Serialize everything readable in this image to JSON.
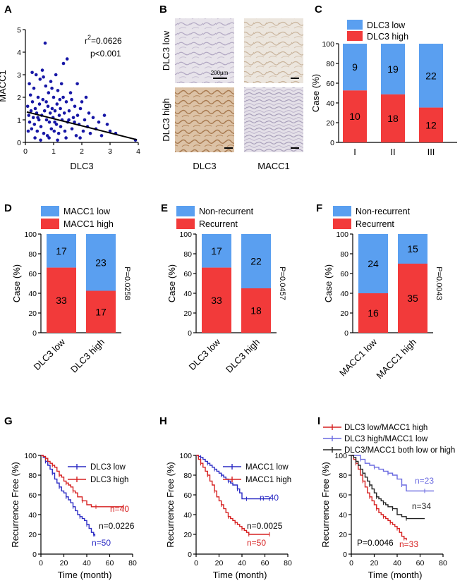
{
  "colors": {
    "blue_bar": "#5a9ff0",
    "red_bar": "#f23a3a",
    "scatter": "#1717a6",
    "km_blue": "#2b2bc4",
    "km_red": "#d62020",
    "km_lightblue": "#6a6ae0",
    "km_black": "#222222"
  },
  "chart_data": [
    {
      "panel": "A",
      "type": "scatter",
      "xlabel": "DLC3",
      "ylabel": "MACC1",
      "xlim": [
        0,
        4
      ],
      "ylim": [
        0,
        5
      ],
      "xticks": [
        "0",
        "1",
        "2",
        "3",
        "4"
      ],
      "yticks": [
        "0",
        "1",
        "2",
        "3",
        "4",
        "5"
      ],
      "annotations": [
        "r²=0.0626",
        "p<0.001"
      ],
      "trend": {
        "x": [
          0.05,
          3.95
        ],
        "y": [
          1.35,
          0.12
        ]
      },
      "points": [
        [
          0.08,
          1.6
        ],
        [
          0.12,
          1.2
        ],
        [
          0.15,
          0.9
        ],
        [
          0.18,
          2.1
        ],
        [
          0.2,
          1.4
        ],
        [
          0.22,
          0.6
        ],
        [
          0.25,
          1.8
        ],
        [
          0.28,
          1.1
        ],
        [
          0.3,
          2.4
        ],
        [
          0.32,
          0.8
        ],
        [
          0.35,
          1.5
        ],
        [
          0.38,
          3.0
        ],
        [
          0.4,
          1.3
        ],
        [
          0.42,
          0.5
        ],
        [
          0.45,
          2.0
        ],
        [
          0.48,
          1.0
        ],
        [
          0.5,
          1.7
        ],
        [
          0.52,
          2.8
        ],
        [
          0.55,
          0.7
        ],
        [
          0.58,
          1.2
        ],
        [
          0.6,
          3.2
        ],
        [
          0.62,
          1.9
        ],
        [
          0.65,
          0.4
        ],
        [
          0.68,
          1.4
        ],
        [
          0.7,
          4.4
        ],
        [
          0.72,
          2.5
        ],
        [
          0.75,
          1.0
        ],
        [
          0.78,
          0.3
        ],
        [
          0.8,
          1.6
        ],
        [
          0.82,
          2.2
        ],
        [
          0.85,
          0.9
        ],
        [
          0.88,
          1.3
        ],
        [
          0.9,
          2.7
        ],
        [
          0.92,
          0.6
        ],
        [
          0.95,
          1.5
        ],
        [
          0.98,
          1.1
        ],
        [
          1.0,
          2.0
        ],
        [
          1.02,
          0.5
        ],
        [
          1.05,
          1.4
        ],
        [
          1.08,
          3.0
        ],
        [
          1.1,
          0.8
        ],
        [
          1.12,
          1.7
        ],
        [
          1.15,
          2.3
        ],
        [
          1.18,
          0.4
        ],
        [
          1.2,
          1.2
        ],
        [
          1.22,
          1.9
        ],
        [
          1.25,
          0.7
        ],
        [
          1.28,
          2.6
        ],
        [
          1.3,
          1.0
        ],
        [
          1.35,
          3.5
        ],
        [
          1.38,
          1.3
        ],
        [
          1.4,
          0.5
        ],
        [
          1.45,
          1.8
        ],
        [
          1.48,
          3.7
        ],
        [
          1.5,
          0.9
        ],
        [
          1.55,
          1.4
        ],
        [
          1.6,
          2.2
        ],
        [
          1.65,
          0.6
        ],
        [
          1.7,
          1.1
        ],
        [
          1.75,
          1.6
        ],
        [
          1.8,
          0.3
        ],
        [
          1.85,
          1.2
        ],
        [
          1.9,
          0.8
        ],
        [
          1.95,
          1.5
        ],
        [
          2.0,
          1.8
        ],
        [
          2.05,
          0.5
        ],
        [
          2.1,
          1.0
        ],
        [
          2.15,
          2.0
        ],
        [
          2.2,
          0.7
        ],
        [
          2.25,
          1.3
        ],
        [
          2.3,
          0.4
        ],
        [
          2.4,
          1.1
        ],
        [
          2.5,
          0.6
        ],
        [
          2.6,
          0.9
        ],
        [
          2.7,
          0.3
        ],
        [
          2.8,
          1.2
        ],
        [
          2.9,
          0.8
        ],
        [
          3.0,
          0.5
        ],
        [
          3.2,
          0.4
        ],
        [
          3.9,
          0.1
        ],
        [
          0.1,
          0.5
        ],
        [
          0.14,
          2.6
        ],
        [
          0.24,
          3.1
        ],
        [
          0.34,
          0.2
        ],
        [
          0.44,
          1.1
        ],
        [
          0.54,
          0.1
        ],
        [
          0.64,
          2.9
        ],
        [
          0.74,
          1.8
        ],
        [
          0.84,
          0.2
        ],
        [
          0.94,
          2.4
        ],
        [
          1.04,
          0.9
        ],
        [
          1.14,
          0.1
        ],
        [
          1.24,
          1.5
        ],
        [
          1.34,
          2.0
        ],
        [
          1.44,
          0.2
        ],
        [
          1.54,
          1.0
        ],
        [
          1.64,
          1.9
        ],
        [
          1.74,
          0.9
        ],
        [
          1.84,
          2.6
        ],
        [
          1.94,
          0.2
        ]
      ]
    },
    {
      "panel": "C",
      "type": "bar",
      "stacked": true,
      "ylabel": "Case (%)",
      "categories": [
        "I",
        "II",
        "III"
      ],
      "legend": [
        "DLC3 low",
        "DLC3 high"
      ],
      "series": [
        {
          "name": "DLC3 high",
          "values": [
            10,
            18,
            12
          ]
        },
        {
          "name": "DLC3 low",
          "values": [
            9,
            19,
            22
          ]
        }
      ],
      "ylim": [
        0,
        100
      ],
      "yticks": [
        "0",
        "20",
        "40",
        "60",
        "80",
        "100"
      ]
    },
    {
      "panel": "D",
      "type": "bar",
      "stacked": true,
      "ylabel": "Case (%)",
      "categories": [
        "DLC3 low",
        "DLC3 high"
      ],
      "legend": [
        "MACC1 low",
        "MACC1 high"
      ],
      "series": [
        {
          "name": "MACC1 high",
          "values": [
            33,
            17
          ]
        },
        {
          "name": "MACC1 low",
          "values": [
            17,
            23
          ]
        }
      ],
      "pvalue": "P=0.0258",
      "ylim": [
        0,
        100
      ],
      "yticks": [
        "0",
        "20",
        "40",
        "60",
        "80",
        "100"
      ]
    },
    {
      "panel": "E",
      "type": "bar",
      "stacked": true,
      "ylabel": "Case (%)",
      "categories": [
        "DLC3 low",
        "DLC3 high"
      ],
      "legend": [
        "Non-recurrent",
        "Recurrent"
      ],
      "series": [
        {
          "name": "Recurrent",
          "values": [
            33,
            18
          ]
        },
        {
          "name": "Non-recurrent",
          "values": [
            17,
            22
          ]
        }
      ],
      "pvalue": "P=0.0457",
      "ylim": [
        0,
        100
      ],
      "yticks": [
        "0",
        "20",
        "40",
        "60",
        "80",
        "100"
      ]
    },
    {
      "panel": "F",
      "type": "bar",
      "stacked": true,
      "ylabel": "Case (%)",
      "categories": [
        "MACC1 low",
        "MACC1 high"
      ],
      "legend": [
        "Non-recurrent",
        "Recurrent"
      ],
      "series": [
        {
          "name": "Recurrent",
          "values": [
            16,
            35
          ]
        },
        {
          "name": "Non-recurrent",
          "values": [
            24,
            15
          ]
        }
      ],
      "pvalue": "P=0.0043",
      "ylim": [
        0,
        100
      ],
      "yticks": [
        "0",
        "20",
        "40",
        "60",
        "80",
        "100"
      ]
    },
    {
      "panel": "G",
      "type": "line",
      "xlabel": "Time (month)",
      "ylabel": "Recurrence Free (%)",
      "xlim": [
        0,
        80
      ],
      "ylim": [
        0,
        100
      ],
      "xticks": [
        "0",
        "20",
        "40",
        "60",
        "80"
      ],
      "yticks": [
        "0",
        "20",
        "40",
        "60",
        "80",
        "100"
      ],
      "pvalue": "n=0.0226",
      "series": [
        {
          "name": "DLC3 low",
          "n": "n=50",
          "color": "blue",
          "x": [
            0,
            2,
            4,
            6,
            8,
            10,
            12,
            14,
            16,
            18,
            20,
            22,
            24,
            26,
            28,
            30,
            32,
            34,
            36,
            38,
            40,
            42,
            44,
            46,
            47
          ],
          "y": [
            100,
            98,
            94,
            90,
            86,
            82,
            76,
            72,
            68,
            64,
            62,
            58,
            55,
            52,
            48,
            44,
            40,
            38,
            36,
            34,
            30,
            26,
            22,
            20,
            18
          ]
        },
        {
          "name": "DLC3 high",
          "n": "n=40",
          "color": "red",
          "x": [
            0,
            2,
            4,
            6,
            8,
            10,
            12,
            14,
            16,
            18,
            20,
            22,
            24,
            26,
            28,
            30,
            32,
            36,
            40,
            44,
            48,
            56,
            64,
            72
          ],
          "y": [
            100,
            99,
            97,
            94,
            92,
            90,
            88,
            84,
            80,
            78,
            74,
            72,
            70,
            68,
            64,
            62,
            58,
            54,
            50,
            48,
            48,
            48,
            48,
            48
          ]
        }
      ]
    },
    {
      "panel": "H",
      "type": "line",
      "xlabel": "Time (month)",
      "ylabel": "Recurrence Free (%)",
      "xlim": [
        0,
        80
      ],
      "ylim": [
        0,
        100
      ],
      "xticks": [
        "0",
        "20",
        "40",
        "60",
        "80"
      ],
      "yticks": [
        "0",
        "20",
        "40",
        "60",
        "80",
        "100"
      ],
      "pvalue": "n=0.0025",
      "series": [
        {
          "name": "MACC1 low",
          "n": "n=40",
          "color": "blue",
          "x": [
            0,
            2,
            4,
            6,
            8,
            10,
            12,
            14,
            16,
            18,
            20,
            22,
            24,
            26,
            28,
            30,
            32,
            36,
            38,
            40,
            44,
            48,
            56,
            64
          ],
          "y": [
            100,
            99,
            98,
            96,
            94,
            92,
            90,
            88,
            86,
            84,
            82,
            80,
            78,
            76,
            74,
            72,
            70,
            66,
            62,
            56,
            56,
            56,
            56,
            56
          ]
        },
        {
          "name": "MACC1 high",
          "n": "n=50",
          "color": "red",
          "x": [
            0,
            2,
            4,
            6,
            8,
            10,
            12,
            14,
            16,
            18,
            20,
            22,
            24,
            26,
            28,
            30,
            32,
            34,
            36,
            38,
            40,
            42,
            44,
            46,
            48,
            56,
            64
          ],
          "y": [
            100,
            96,
            92,
            88,
            84,
            80,
            74,
            70,
            64,
            58,
            54,
            50,
            46,
            42,
            38,
            36,
            34,
            32,
            30,
            28,
            26,
            24,
            22,
            20,
            20,
            20,
            20
          ]
        }
      ]
    },
    {
      "panel": "I",
      "type": "line",
      "xlabel": "Time (month)",
      "ylabel": "Recurrence Free (%)",
      "xlim": [
        0,
        80
      ],
      "ylim": [
        0,
        100
      ],
      "xticks": [
        "0",
        "20",
        "40",
        "60",
        "80"
      ],
      "yticks": [
        "0",
        "20",
        "40",
        "60",
        "80",
        "100"
      ],
      "pvalue": "P=0.0046",
      "series": [
        {
          "name": "DLC3 low/MACC1 high",
          "n": "n=33",
          "color": "red",
          "x": [
            0,
            2,
            4,
            6,
            8,
            10,
            12,
            14,
            16,
            18,
            20,
            22,
            24,
            26,
            28,
            30,
            32,
            34,
            36,
            38,
            40,
            42,
            44,
            46,
            48
          ],
          "y": [
            100,
            96,
            92,
            86,
            80,
            74,
            68,
            62,
            58,
            54,
            50,
            46,
            42,
            40,
            38,
            36,
            34,
            32,
            30,
            28,
            26,
            22,
            18,
            16,
            14
          ]
        },
        {
          "name": "DLC3 high/MACC1 low",
          "n": "n=23",
          "color": "lightblue",
          "x": [
            0,
            4,
            8,
            12,
            16,
            20,
            24,
            28,
            32,
            36,
            40,
            44,
            48,
            56,
            64,
            72
          ],
          "y": [
            100,
            100,
            96,
            92,
            90,
            88,
            86,
            84,
            82,
            80,
            76,
            70,
            64,
            64,
            64,
            64
          ]
        },
        {
          "name": "DLC3/MACC1 both low or high",
          "n": "n=34",
          "color": "black",
          "x": [
            0,
            2,
            4,
            6,
            8,
            10,
            12,
            14,
            16,
            18,
            20,
            22,
            24,
            26,
            28,
            30,
            32,
            36,
            40,
            44,
            48,
            56,
            64
          ],
          "y": [
            100,
            98,
            94,
            90,
            86,
            82,
            78,
            74,
            70,
            66,
            62,
            58,
            56,
            54,
            52,
            50,
            48,
            46,
            40,
            38,
            36,
            36,
            36
          ]
        }
      ]
    }
  ],
  "panel_b": {
    "letter": "B",
    "row_labels": [
      "DLC3 low",
      "DLC3 high"
    ],
    "col_labels": [
      "DLC3",
      "MACC1"
    ],
    "scale_bar": "200μm"
  }
}
